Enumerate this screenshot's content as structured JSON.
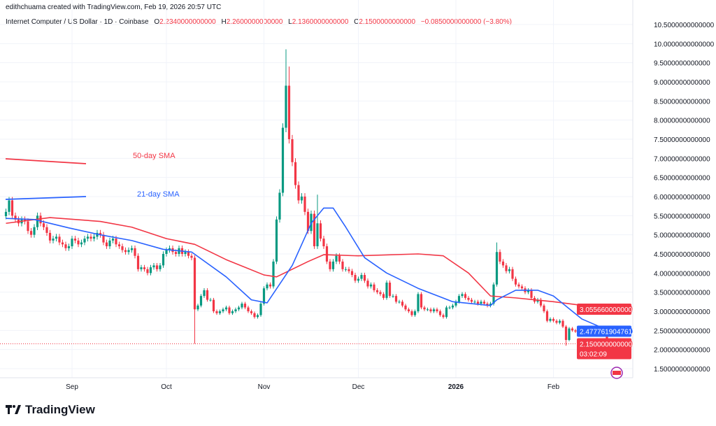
{
  "credit": "edithchuama created with TradingView.com, Feb 19, 2026 20:57 UTC",
  "header": {
    "symbol": "Internet Computer / US Dollar · 1D · Coinbase",
    "o_label": "O",
    "o": "2.2340000000000",
    "h_label": "H",
    "h": "2.2600000000000",
    "l_label": "L",
    "l": "2.1360000000000",
    "c_label": "C",
    "c": "2.1500000000000",
    "change": "−0.0850000000000 (−3.80%)"
  },
  "logo": "TradingView",
  "colors": {
    "up": "#089981",
    "down": "#f23645",
    "sma21": "#2962ff",
    "sma50": "#f23645",
    "grid": "#f0f3fa"
  },
  "chart_data": {
    "type": "candlestick",
    "ylim": [
      1.5,
      10.5
    ],
    "y_ticks": [
      "10.5000000000000",
      "10.0000000000000",
      "9.5000000000000",
      "9.0000000000000",
      "8.5000000000000",
      "8.0000000000000",
      "7.5000000000000",
      "7.0000000000000",
      "6.5000000000000",
      "6.0000000000000",
      "5.5000000000000",
      "5.0000000000000",
      "4.5000000000000",
      "4.0000000000000",
      "3.5000000000000",
      "3.0000000000000",
      "2.5000000000000",
      "2.0000000000000",
      "1.5000000000000"
    ],
    "x_ticks": [
      {
        "label": "Sep",
        "date": "2025-09-01"
      },
      {
        "label": "Oct",
        "date": "2025-10-01"
      },
      {
        "label": "Nov",
        "date": "2025-11-01"
      },
      {
        "label": "Dec",
        "date": "2025-12-01"
      },
      {
        "label": "2026",
        "date": "2026-01-01"
      },
      {
        "label": "Feb",
        "date": "2026-02-01"
      }
    ],
    "annotations": [
      {
        "text": "50-day SMA",
        "series": "sma50"
      },
      {
        "text": "21-day SMA",
        "series": "sma21"
      }
    ],
    "price_labels": {
      "sma50": "3.0556600000000",
      "sma21": "2.4777619047619",
      "last": "2.1500000000000",
      "countdown": "03:02:09"
    },
    "closes": {
      "2025-08": {
        "start": 11,
        "v": [
          5.6,
          5.9,
          5.5,
          5.4,
          5.3,
          5.4,
          5.35,
          5.1,
          5.0,
          5.2,
          5.5,
          5.3,
          5.2,
          5.05,
          4.85,
          4.9,
          4.95,
          4.8,
          4.75,
          4.65,
          4.7
        ]
      },
      "2025-09": {
        "start": 1,
        "v": [
          4.9,
          4.85,
          4.75,
          4.8,
          4.9,
          4.95,
          4.9,
          4.95,
          5.05,
          5.0,
          4.8,
          4.7,
          4.85,
          4.9,
          4.75,
          4.7,
          4.6,
          4.55,
          4.6,
          4.65,
          4.45,
          4.1,
          4.15,
          4.1,
          4.0,
          4.15,
          4.2,
          4.1,
          4.2,
          4.5
        ]
      },
      "2025-10": {
        "start": 1,
        "v": [
          4.6,
          4.65,
          4.55,
          4.5,
          4.65,
          4.5,
          4.55,
          4.45,
          4.4,
          3.05,
          3.15,
          3.4,
          3.55,
          3.3,
          3.3,
          3.0,
          2.95,
          3.0,
          3.05,
          3.1,
          2.95,
          3.0,
          3.05,
          3.1,
          3.2,
          3.1,
          3.0,
          2.95,
          2.85,
          2.9,
          3.2
        ]
      },
      "2025-11": {
        "start": 1,
        "v": [
          3.6,
          3.7,
          3.65,
          4.3,
          5.4,
          6.1,
          7.8,
          8.9,
          7.5,
          6.9,
          6.3,
          5.9,
          6.0,
          5.6,
          5.1,
          5.55,
          4.7,
          5.3,
          4.9,
          4.7,
          4.3,
          4.1,
          4.3,
          4.45,
          4.3,
          4.1,
          4.1,
          4.05,
          3.95,
          3.8
        ]
      },
      "2025-12": {
        "start": 1,
        "v": [
          3.85,
          3.95,
          3.8,
          3.65,
          3.7,
          3.55,
          3.5,
          3.45,
          3.35,
          3.75,
          3.4,
          3.4,
          3.25,
          3.25,
          3.15,
          3.05,
          3.0,
          2.9,
          3.0,
          3.45,
          3.1,
          3.05,
          3.05,
          3.0,
          3.05,
          3.0,
          2.9,
          2.85,
          3.1,
          3.1,
          3.15
        ]
      },
      "2026-01": {
        "start": 1,
        "v": [
          3.25,
          3.4,
          3.45,
          3.35,
          3.3,
          3.25,
          3.25,
          3.2,
          3.25,
          3.2,
          3.15,
          3.2,
          3.7,
          4.55,
          4.3,
          4.2,
          4.05,
          4.1,
          3.85,
          3.7,
          3.65,
          3.6,
          3.5,
          3.55,
          3.35,
          3.25,
          3.3,
          3.15,
          3.0,
          2.75,
          2.8
        ]
      },
      "2026-02": {
        "start": 1,
        "v": [
          2.75,
          2.7,
          2.75,
          2.6,
          2.25,
          2.55,
          2.5,
          2.47,
          2.45,
          2.43,
          2.4,
          2.42,
          2.45,
          2.58,
          2.5,
          2.5,
          2.45,
          2.234,
          2.15
        ]
      }
    },
    "wick_extremes": [
      {
        "date": "2025-10-10",
        "low": 2.15
      },
      {
        "date": "2025-11-08",
        "high": 9.85
      },
      {
        "date": "2025-11-09",
        "high": 9.4
      },
      {
        "date": "2025-11-18",
        "high": 6.05
      },
      {
        "date": "2026-01-14",
        "high": 4.8
      },
      {
        "date": "2026-02-05",
        "low": 2.1
      }
    ],
    "sma21": [
      [
        "2025-08-11",
        5.43
      ],
      [
        "2025-08-20",
        5.4
      ],
      [
        "2025-08-31",
        5.18
      ],
      [
        "2025-09-10",
        5.0
      ],
      [
        "2025-09-20",
        4.85
      ],
      [
        "2025-09-30",
        4.62
      ],
      [
        "2025-10-09",
        4.55
      ],
      [
        "2025-10-20",
        3.9
      ],
      [
        "2025-10-28",
        3.3
      ],
      [
        "2025-11-02",
        3.22
      ],
      [
        "2025-11-10",
        4.2
      ],
      [
        "2025-11-16",
        5.3
      ],
      [
        "2025-11-20",
        5.7
      ],
      [
        "2025-11-23",
        5.7
      ],
      [
        "2025-11-27",
        5.2
      ],
      [
        "2025-12-03",
        4.4
      ],
      [
        "2025-12-10",
        4.0
      ],
      [
        "2025-12-20",
        3.6
      ],
      [
        "2025-12-31",
        3.25
      ],
      [
        "2026-01-12",
        3.15
      ],
      [
        "2026-01-14",
        3.3
      ],
      [
        "2026-01-20",
        3.55
      ],
      [
        "2026-01-27",
        3.55
      ],
      [
        "2026-02-01",
        3.4
      ],
      [
        "2026-02-10",
        2.8
      ],
      [
        "2026-02-19",
        2.48
      ]
    ],
    "sma50": [
      [
        "2025-08-11",
        5.3
      ],
      [
        "2025-08-25",
        5.45
      ],
      [
        "2025-09-10",
        5.35
      ],
      [
        "2025-09-20",
        5.2
      ],
      [
        "2025-10-01",
        4.9
      ],
      [
        "2025-10-10",
        4.75
      ],
      [
        "2025-10-20",
        4.35
      ],
      [
        "2025-11-01",
        3.95
      ],
      [
        "2025-11-05",
        3.9
      ],
      [
        "2025-11-15",
        4.3
      ],
      [
        "2025-11-20",
        4.48
      ],
      [
        "2025-12-01",
        4.45
      ],
      [
        "2025-12-20",
        4.5
      ],
      [
        "2025-12-28",
        4.45
      ],
      [
        "2026-01-05",
        4.0
      ],
      [
        "2026-01-12",
        3.4
      ],
      [
        "2026-01-20",
        3.35
      ],
      [
        "2026-02-01",
        3.25
      ],
      [
        "2026-02-19",
        3.06
      ]
    ]
  }
}
